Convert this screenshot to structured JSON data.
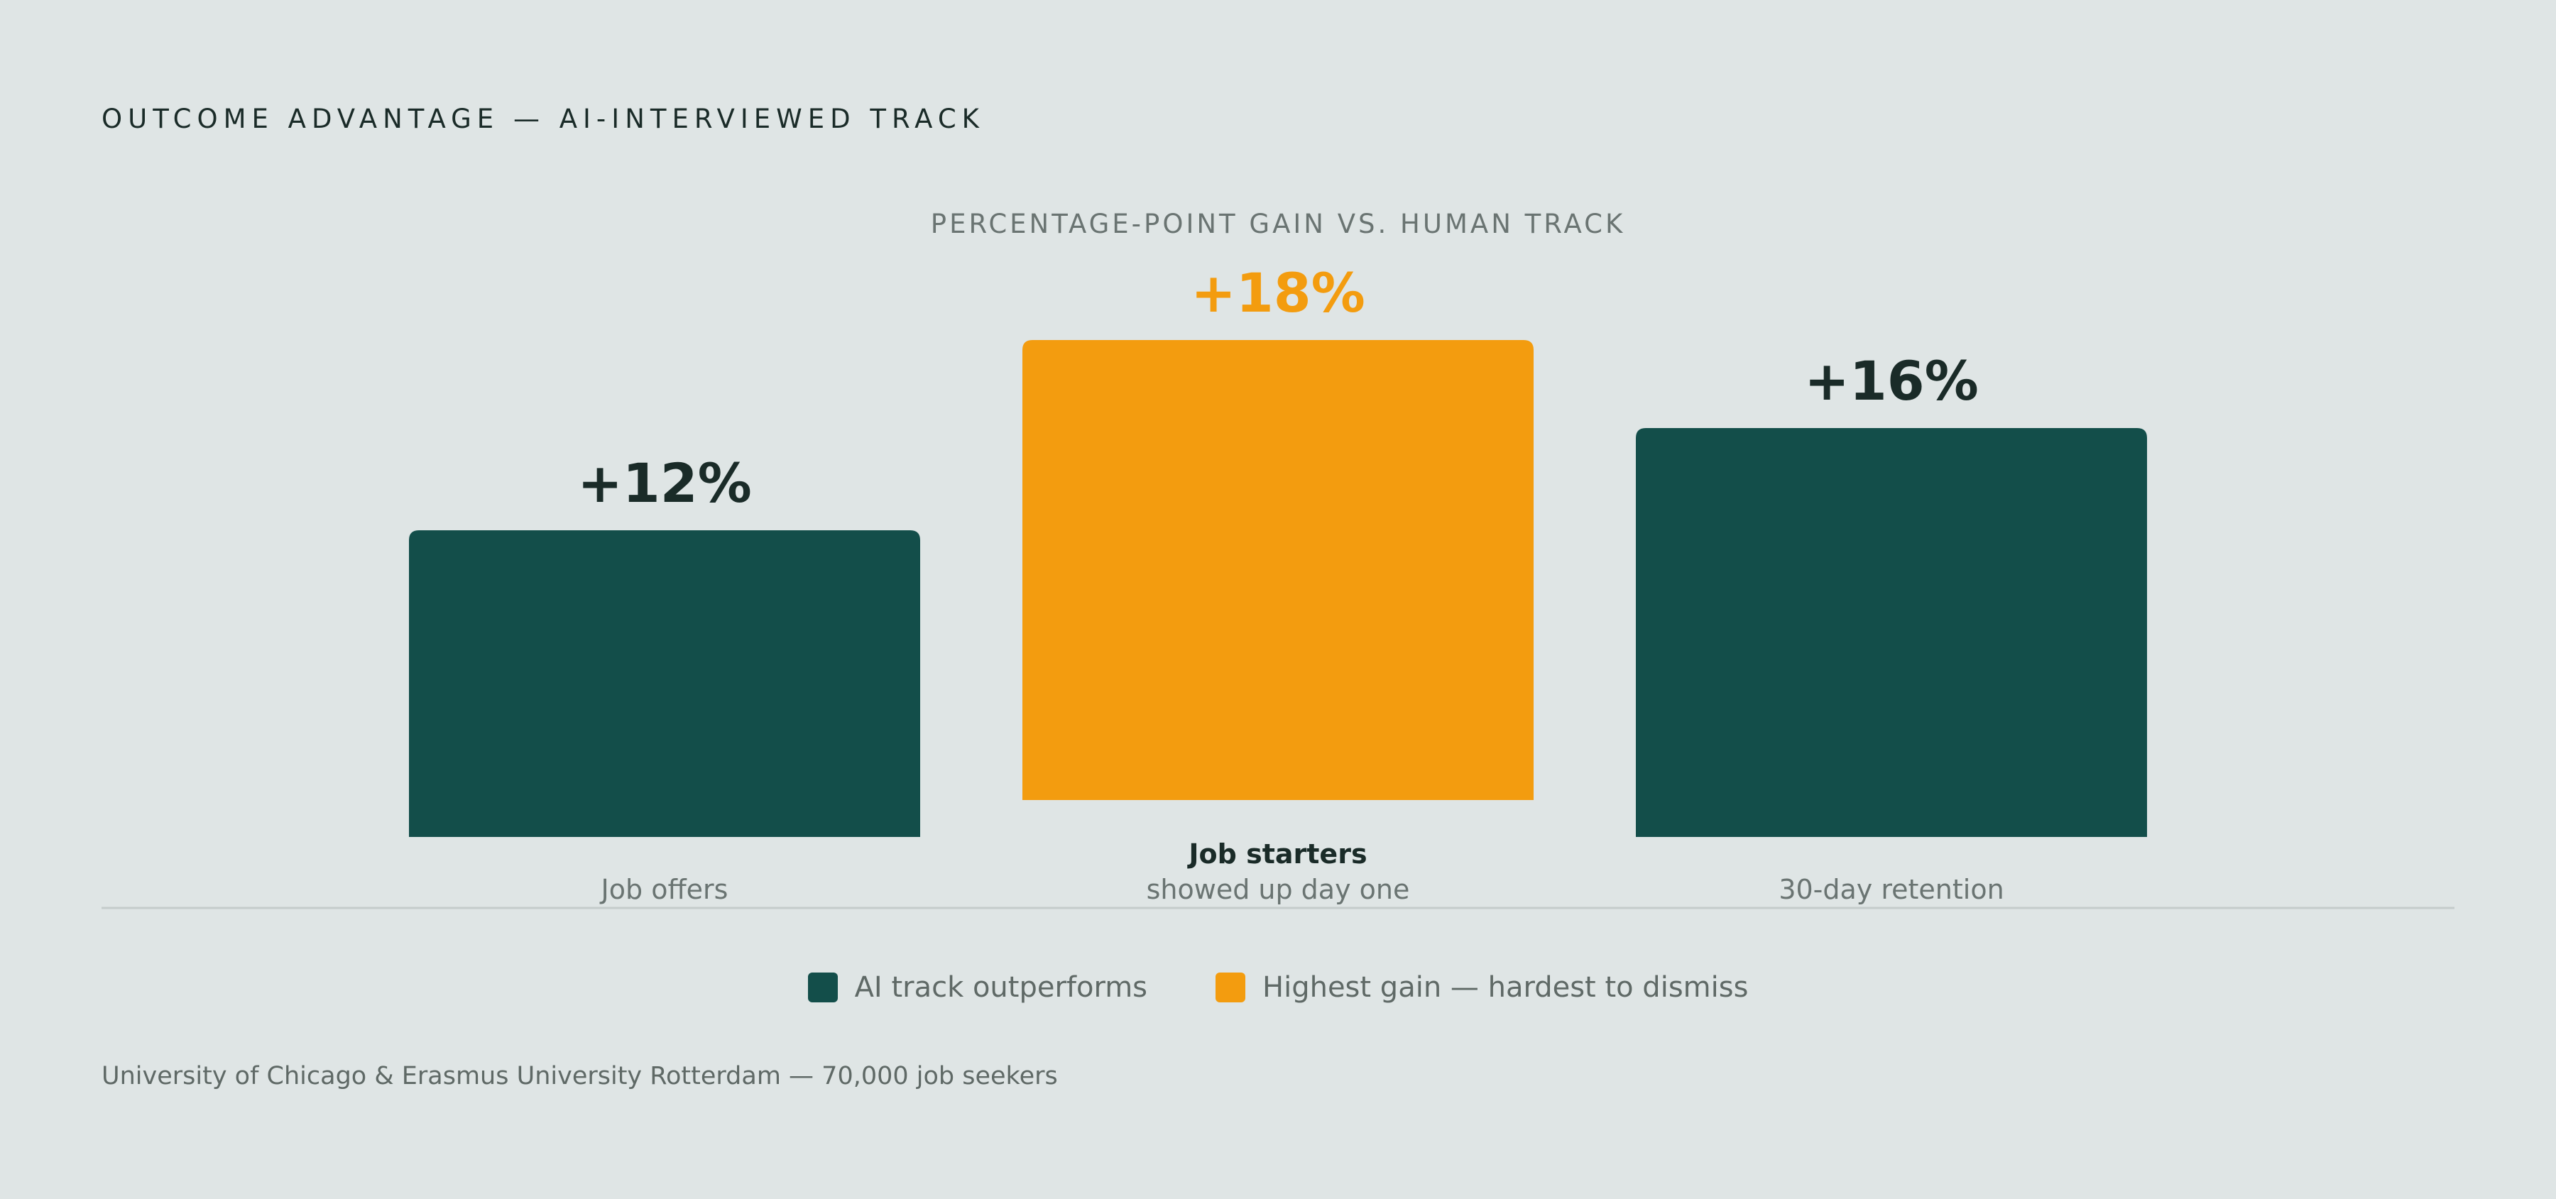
{
  "header": {
    "eyebrow": "OUTCOME ADVANTAGE — AI-INTERVIEWED TRACK",
    "subtitle": "PERCENTAGE-POINT GAIN VS. HUMAN TRACK"
  },
  "colors": {
    "background": "#dfe5e5",
    "teal": "#134e4a",
    "amber": "#f39c0f",
    "label_dark": "#1a2b28",
    "muted": "#6a7472",
    "axis": "#c4cccb"
  },
  "chart_data": {
    "type": "bar",
    "categories": [
      "Job offers",
      "Job starters",
      "30-day retention"
    ],
    "category_sublabels": [
      "",
      "showed up day one",
      ""
    ],
    "values": [
      12,
      18,
      16
    ],
    "value_labels": [
      "+12%",
      "+18%",
      "+16%"
    ],
    "highlight_index": 1,
    "title": "PERCENTAGE-POINT GAIN VS. HUMAN TRACK",
    "xlabel": "",
    "ylabel": "",
    "grid": false
  },
  "legend": {
    "items": [
      {
        "label": "AI track outperforms",
        "color": "#134e4a"
      },
      {
        "label": "Highest gain — hardest to dismiss",
        "color": "#f39c0f"
      }
    ]
  },
  "footer": {
    "source": "University of Chicago & Erasmus University Rotterdam — 70,000 job seekers"
  }
}
